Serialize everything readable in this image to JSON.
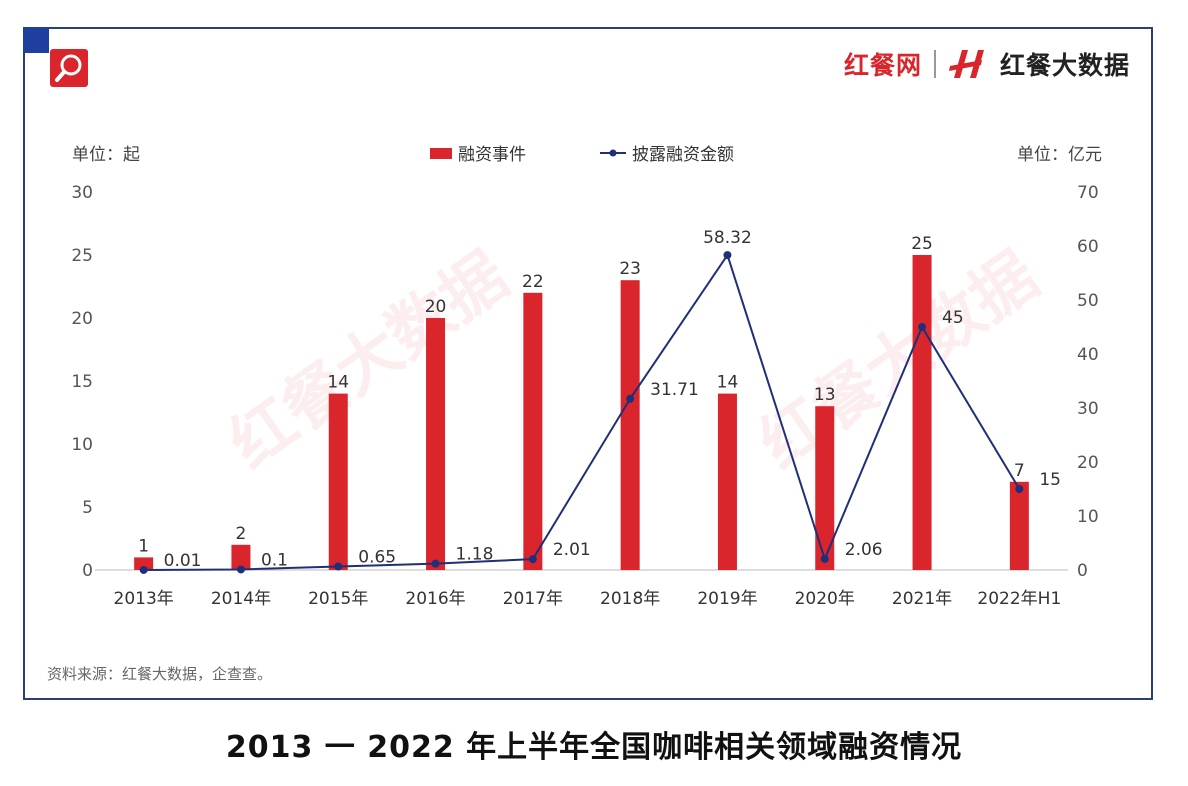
{
  "brand": {
    "name": "红餐网",
    "subbrand": "红餐大数据"
  },
  "watermark": "红餐大数据",
  "caption": "2013 一 2022 年上半年全国咖啡相关领域融资情况",
  "source": "资料来源：红餐大数据，企查查。",
  "chart_data": {
    "type": "bar",
    "title": "",
    "categories": [
      "2013年",
      "2014年",
      "2015年",
      "2016年",
      "2017年",
      "2018年",
      "2019年",
      "2020年",
      "2021年",
      "2022年H1"
    ],
    "left_unit": "单位：起",
    "right_unit": "单位：亿元",
    "ylim_left": [
      0,
      30
    ],
    "yticks_left": [
      0,
      5,
      10,
      15,
      20,
      25,
      30
    ],
    "ylim_right": [
      0,
      70
    ],
    "yticks_right": [
      0,
      10,
      20,
      30,
      40,
      50,
      60,
      70
    ],
    "legend_position": "top-center",
    "grid": false,
    "series": [
      {
        "name": "融资事件",
        "type": "bar",
        "axis": "left",
        "color": "#d9252b",
        "values": [
          1,
          2,
          14,
          20,
          22,
          23,
          14,
          13,
          25,
          7
        ]
      },
      {
        "name": "披露融资金额",
        "type": "line",
        "axis": "right",
        "color": "#1f2f7a",
        "values": [
          0.01,
          0.1,
          0.65,
          1.18,
          2.01,
          31.71,
          58.32,
          2.06,
          45,
          15
        ]
      }
    ]
  }
}
